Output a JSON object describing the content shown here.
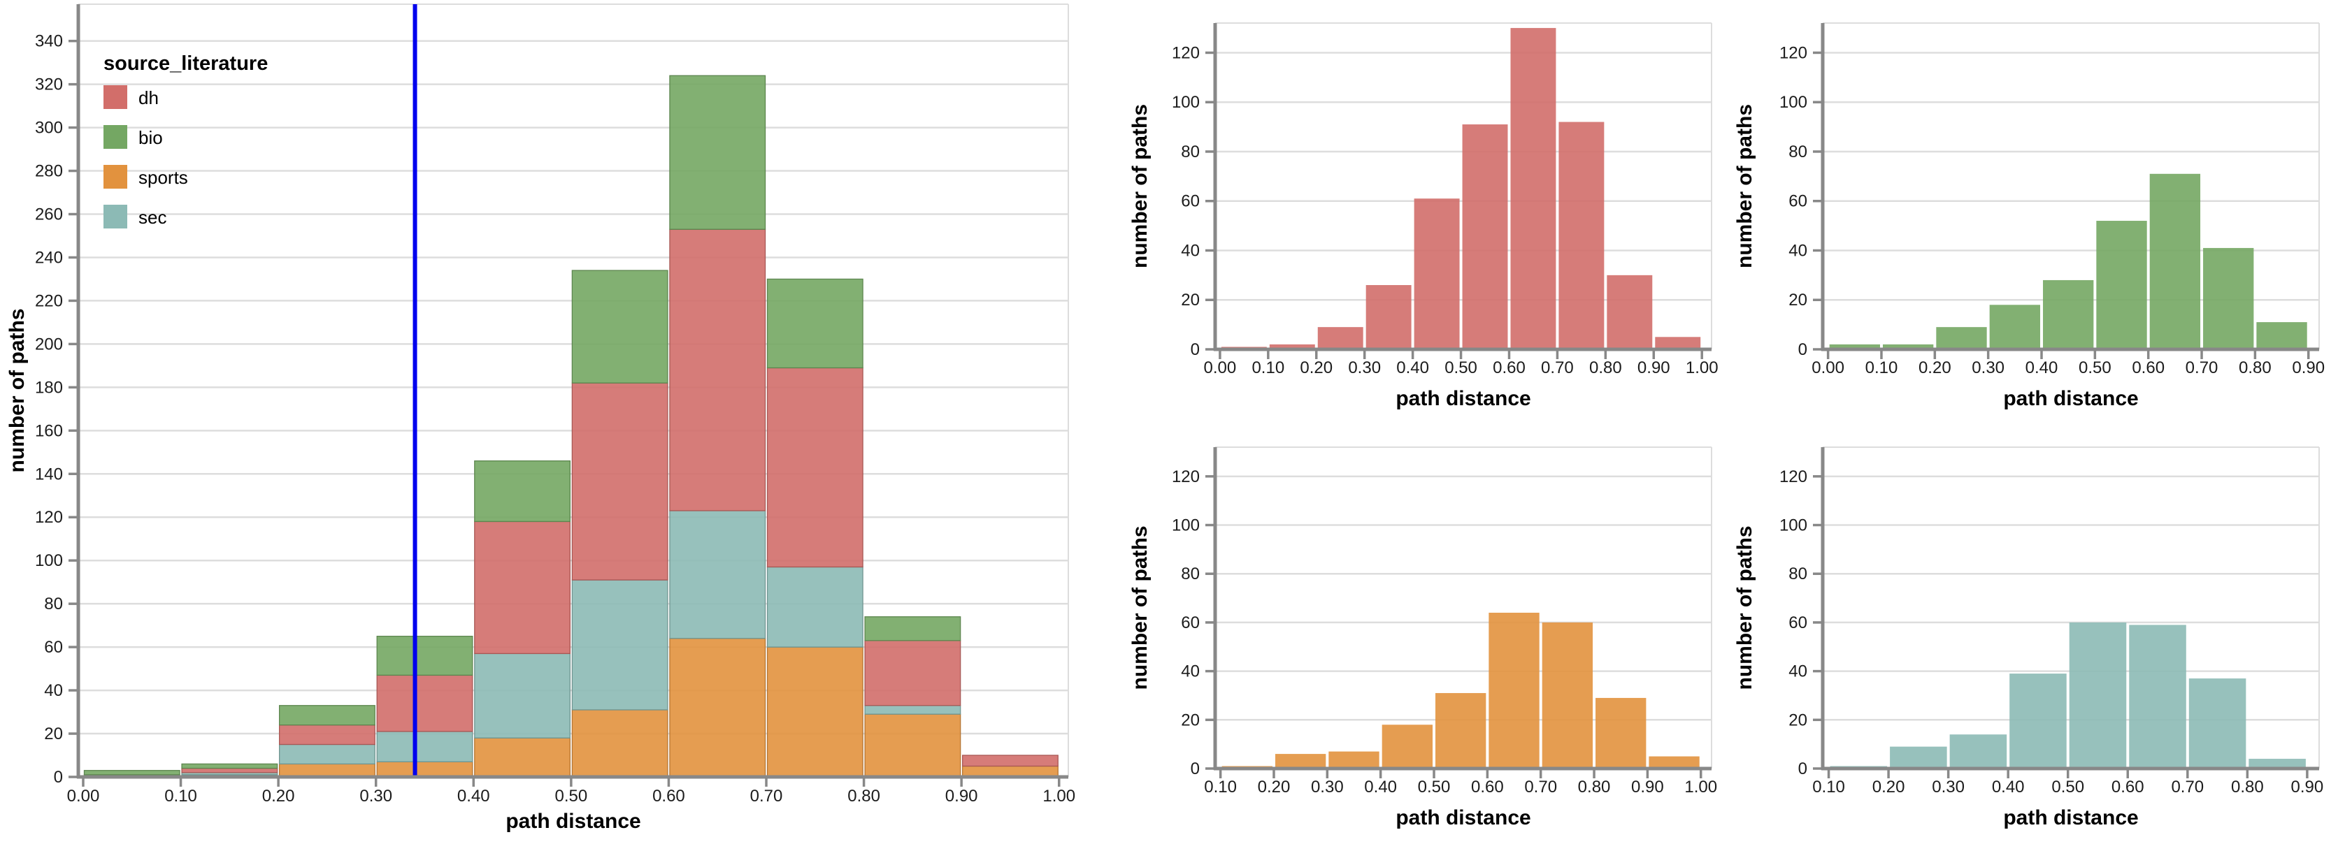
{
  "page": {
    "background": "#ffffff"
  },
  "axis_titles": {
    "x": "path distance",
    "y": "number of paths"
  },
  "legend": {
    "title": "source_literature",
    "entries": [
      {
        "key": "dh",
        "label": "dh"
      },
      {
        "key": "bio",
        "label": "bio"
      },
      {
        "key": "sports",
        "label": "sports"
      },
      {
        "key": "sec",
        "label": "sec"
      }
    ]
  },
  "chart_data": {
    "type": "bar",
    "variant": "stacked-histogram-with-small-multiples",
    "title": "",
    "xlabel": "path distance",
    "ylabel": "number of paths",
    "bin_edges": [
      0.0,
      0.1,
      0.2,
      0.3,
      0.4,
      0.5,
      0.6,
      0.7,
      0.8,
      0.9,
      1.0
    ],
    "series": [
      {
        "name": "dh",
        "color": "#d26e6a",
        "values": [
          1,
          2,
          9,
          26,
          61,
          91,
          130,
          92,
          30,
          5
        ]
      },
      {
        "name": "bio",
        "color": "#74a763",
        "values": [
          2,
          2,
          9,
          18,
          28,
          52,
          71,
          41,
          11,
          0
        ]
      },
      {
        "name": "sports",
        "color": "#e2923e",
        "values": [
          0,
          1,
          6,
          7,
          18,
          31,
          64,
          60,
          29,
          5
        ]
      },
      {
        "name": "sec",
        "color": "#8cbab5",
        "values": [
          0,
          1,
          9,
          14,
          39,
          60,
          59,
          37,
          4,
          0
        ]
      }
    ],
    "stack_order_bottom_to_top": [
      "sports",
      "sec",
      "dh",
      "bio"
    ],
    "main_panel": {
      "legend_title": "source_literature",
      "rule_x": 0.34,
      "rule_color": "#0000ee",
      "y_ticks": [
        0,
        20,
        40,
        60,
        80,
        100,
        120,
        140,
        160,
        180,
        200,
        220,
        240,
        260,
        280,
        300,
        320,
        340
      ],
      "x_ticks": [
        0.0,
        0.1,
        0.2,
        0.3,
        0.4,
        0.5,
        0.6,
        0.7,
        0.8,
        0.9,
        1.0
      ],
      "x_domain": [
        -0.005,
        1.0095
      ],
      "y_domain_max": 357
    },
    "small_panels": [
      {
        "series": "dh",
        "x_ticks": [
          0.0,
          0.1,
          0.2,
          0.3,
          0.4,
          0.5,
          0.6,
          0.7,
          0.8,
          0.9,
          1.0
        ],
        "x_domain": [
          -0.01,
          1.02
        ],
        "y_ticks": [
          0,
          20,
          40,
          60,
          80,
          100,
          120
        ],
        "y_domain_max": 132
      },
      {
        "series": "bio",
        "x_ticks": [
          0.0,
          0.1,
          0.2,
          0.3,
          0.4,
          0.5,
          0.6,
          0.7,
          0.8,
          0.9
        ],
        "x_domain": [
          -0.01,
          0.92
        ],
        "y_ticks": [
          0,
          20,
          40,
          60,
          80,
          100,
          120
        ],
        "y_domain_max": 132
      },
      {
        "series": "sports",
        "x_ticks": [
          0.1,
          0.2,
          0.3,
          0.4,
          0.5,
          0.6,
          0.7,
          0.8,
          0.9,
          1.0
        ],
        "x_domain": [
          0.09,
          1.02
        ],
        "y_ticks": [
          0,
          20,
          40,
          60,
          80,
          100,
          120
        ],
        "y_domain_max": 132
      },
      {
        "series": "sec",
        "x_ticks": [
          0.1,
          0.2,
          0.3,
          0.4,
          0.5,
          0.6,
          0.7,
          0.8,
          0.9
        ],
        "x_domain": [
          0.09,
          0.92
        ],
        "y_ticks": [
          0,
          20,
          40,
          60,
          80,
          100,
          120
        ],
        "y_domain_max": 132
      }
    ],
    "style": {
      "grid_color": "#dddddd",
      "border_color": "#dddddd",
      "domain_color": "#888888",
      "tick_color": "#888888",
      "label_color": "#1c1c1c",
      "title_color": "#000000",
      "fill_opacity": 0.9
    },
    "axis_ranges": {
      "grid": true,
      "legend_position": "top-left-inside-main"
    }
  }
}
